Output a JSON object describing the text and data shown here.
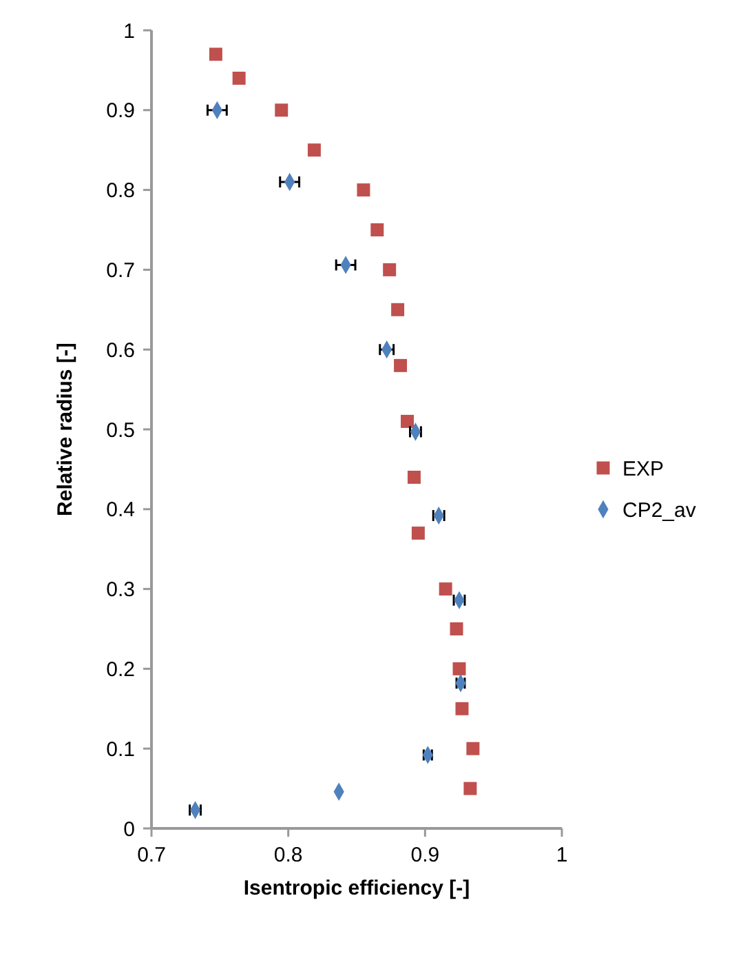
{
  "chart_data": {
    "type": "scatter",
    "xlabel": "Isentropic efficiency [-]",
    "ylabel": "Relative radius [-]",
    "xlim": [
      0.7,
      1
    ],
    "xticks": [
      0.7,
      0.8,
      0.9,
      1
    ],
    "ylim": [
      0,
      1
    ],
    "yticks": [
      0,
      0.1,
      0.2,
      0.3,
      0.4,
      0.5,
      0.6,
      0.7,
      0.8,
      0.9,
      1
    ],
    "grid": false,
    "legend": "right",
    "series": [
      {
        "name": "EXP",
        "color": "#c0504d",
        "marker": "square",
        "x": [
          0.747,
          0.764,
          0.795,
          0.819,
          0.855,
          0.865,
          0.874,
          0.88,
          0.882,
          0.887,
          0.892,
          0.895,
          0.915,
          0.923,
          0.925,
          0.927,
          0.935,
          0.933
        ],
        "values": [
          0.97,
          0.94,
          0.9,
          0.85,
          0.8,
          0.75,
          0.7,
          0.65,
          0.58,
          0.51,
          0.44,
          0.37,
          0.3,
          0.25,
          0.2,
          0.15,
          0.1,
          0.05
        ]
      },
      {
        "name": "CP2_av",
        "color": "#4f81bd",
        "marker": "diamond",
        "x": [
          0.748,
          0.801,
          0.842,
          0.872,
          0.893,
          0.91,
          0.925,
          0.926,
          0.902,
          0.837,
          0.732
        ],
        "values": [
          0.9,
          0.81,
          0.706,
          0.6,
          0.497,
          0.392,
          0.286,
          0.182,
          0.092,
          0.046,
          0.023
        ],
        "xerrors": [
          0.007,
          0.007,
          0.007,
          0.005,
          0.004,
          0.004,
          0.004,
          0.003,
          0.003,
          null,
          0.004
        ]
      }
    ]
  }
}
